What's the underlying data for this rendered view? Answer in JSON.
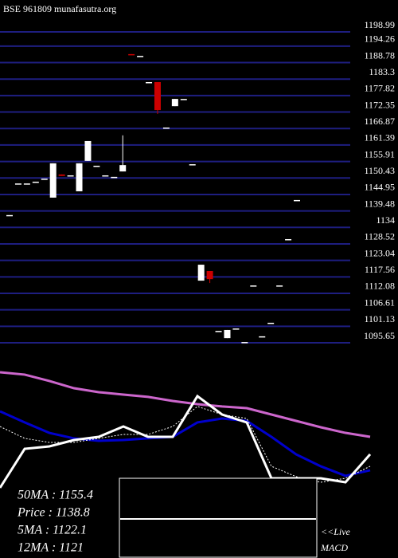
{
  "header": "BSE 961809 munafasutra.org",
  "stats": [
    "50MA : 1155.4",
    "Price  : 1138.8",
    "5MA : 1122.1",
    "12MA : 1121"
  ],
  "macd_label": [
    "<<Live",
    "MACD"
  ],
  "chart_data": [
    {
      "type": "candlestick",
      "ylim": [
        1095.65,
        1198.99
      ],
      "yticks": [
        1198.99,
        1194.26,
        1188.78,
        1183.3,
        1177.82,
        1172.35,
        1166.87,
        1161.39,
        1155.91,
        1150.43,
        1144.95,
        1139.48,
        1134,
        1128.52,
        1123.04,
        1117.56,
        1112.08,
        1106.61,
        1101.13,
        1095.65
      ],
      "grid": true,
      "grid_color": "#1e1e80",
      "up_color": "#ffffff",
      "down_color": "#cc0000",
      "open": [
        1138.1,
        1148.6,
        1148.6,
        1149.2,
        1150.2,
        1143.9,
        1151.6,
        1151.3,
        1146.0,
        1156.1,
        1154.5,
        1151.3,
        1150.8,
        1152.6,
        1191.6,
        1191.0,
        1182.3,
        1182.3,
        1167.2,
        1174.3,
        1176.7,
        1155.0,
        1116.3,
        1119.5,
        1099.6,
        1097.2,
        1100.4,
        1095.9,
        1114.7,
        1097.8,
        1102.3,
        1114.7,
        1130.1,
        1143.1
      ],
      "high": [
        1138.1,
        1148.6,
        1148.6,
        1149.2,
        1150.2,
        1155.3,
        1151.6,
        1151.3,
        1155.3,
        1162.7,
        1154.5,
        1151.3,
        1150.8,
        1164.6,
        1191.6,
        1191.0,
        1182.3,
        1182.3,
        1167.2,
        1176.7,
        1176.7,
        1155.0,
        1121.6,
        1119.5,
        1099.6,
        1099.9,
        1100.4,
        1095.9,
        1114.7,
        1097.8,
        1102.3,
        1114.7,
        1130.1,
        1143.1
      ],
      "low": [
        1138.1,
        1148.6,
        1148.6,
        1149.2,
        1150.2,
        1143.9,
        1151.1,
        1151.3,
        1146.0,
        1156.1,
        1154.5,
        1151.3,
        1150.8,
        1152.6,
        1191.3,
        1191.0,
        1182.3,
        1171.7,
        1167.2,
        1174.3,
        1176.7,
        1155.0,
        1116.3,
        1115.5,
        1099.6,
        1097.2,
        1100.4,
        1095.9,
        1114.7,
        1097.8,
        1102.3,
        1114.7,
        1130.1,
        1143.1
      ],
      "close": [
        1138.1,
        1148.6,
        1148.6,
        1149.2,
        1150.2,
        1155.3,
        1151.1,
        1151.3,
        1155.3,
        1162.7,
        1154.5,
        1151.3,
        1150.8,
        1154.7,
        1191.3,
        1191.0,
        1182.3,
        1173.0,
        1167.2,
        1176.7,
        1176.7,
        1155.0,
        1121.6,
        1116.8,
        1099.6,
        1099.9,
        1100.4,
        1095.9,
        1114.7,
        1097.8,
        1102.3,
        1114.7,
        1130.1,
        1143.1
      ]
    },
    {
      "type": "line",
      "ylim": [
        0,
        100
      ],
      "series": [
        {
          "color": "#cc66cc",
          "values": [
            95.6,
            93.8,
            88.8,
            83.1,
            80,
            78.1,
            76.3,
            73.1,
            70.6,
            68.8,
            67.5,
            62.5,
            57.5,
            52.5,
            48.1,
            45
          ]
        },
        {
          "color": "#0000cc",
          "values": [
            65,
            56.3,
            48.1,
            43.8,
            41.9,
            42.5,
            43.8,
            45,
            56.3,
            59.4,
            57.5,
            45,
            31.3,
            21.9,
            14.4,
            18.8
          ]
        },
        {
          "color": "#ffffff",
          "dashed": true,
          "values": [
            53.1,
            43.8,
            40.6,
            40.6,
            43.8,
            46.9,
            46.9,
            53.1,
            68.8,
            62.5,
            59.4,
            21.9,
            13.8,
            9.4,
            12.5,
            21.9
          ]
        },
        {
          "color": "#ffffff",
          "values": [
            5,
            35.6,
            37.5,
            42.5,
            45,
            53.1,
            45,
            45,
            76.9,
            62.5,
            56.3,
            12.5,
            12.5,
            12.5,
            9.4,
            31.3
          ]
        }
      ]
    }
  ]
}
